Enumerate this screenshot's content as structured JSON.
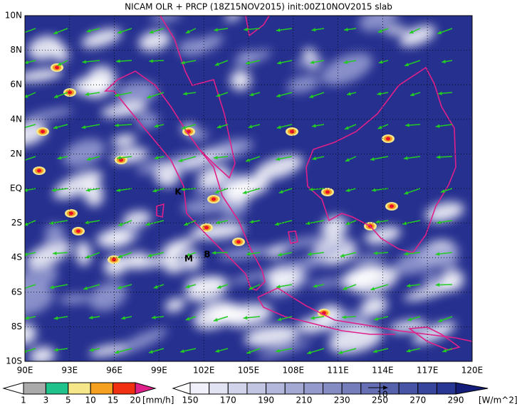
{
  "title": "NICAM OLR + PRCP (18Z15NOV2015) init:00Z10NOV2015 slab",
  "lat_labels": [
    "10N",
    "8N",
    "6N",
    "4N",
    "2N",
    "EQ",
    "2S",
    "4S",
    "6S",
    "8S",
    "10S"
  ],
  "lon_labels": [
    "90E",
    "93E",
    "96E",
    "99E",
    "102E",
    "105E",
    "108E",
    "111E",
    "114E",
    "117E",
    "120E"
  ],
  "markers": [
    "K",
    "M",
    "B"
  ],
  "precip_colorbar": {
    "labels": [
      "1",
      "3",
      "5",
      "10",
      "15",
      "20"
    ],
    "unit": "[mm/h]"
  },
  "olr_colorbar": {
    "labels": [
      "150",
      "170",
      "190",
      "210",
      "230",
      "250",
      "270",
      "290"
    ],
    "unit": "[W/m^2]"
  },
  "vector_reference": "10"
}
